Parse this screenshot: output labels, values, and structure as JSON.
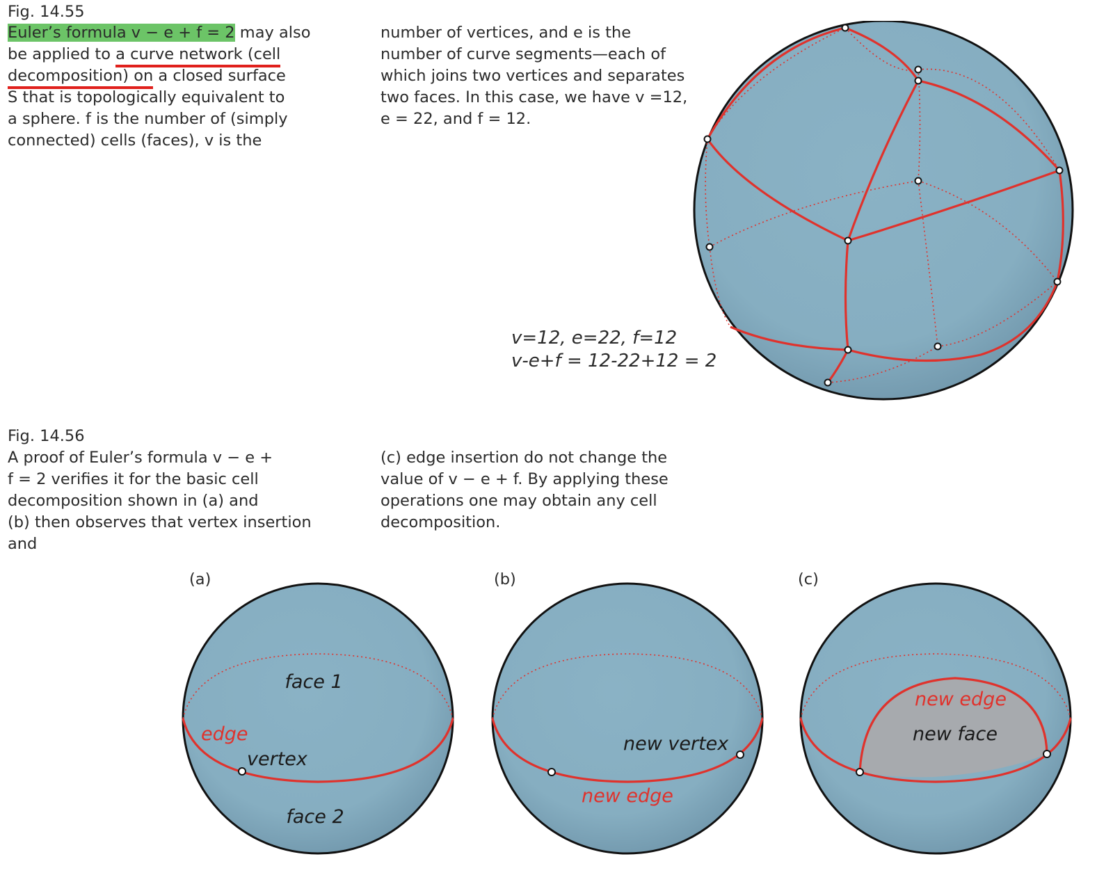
{
  "fig55": {
    "label": "Fig. 14.55",
    "col1": {
      "l1_hl": "Euler’s formula v − e + f = 2",
      "l1_rest": " may also",
      "l2_a": "be applied to ",
      "l2_u": "a curve network (cell",
      "l3_u": "decomposition) on",
      "l3_rest": " a closed surface",
      "l4": "S that is topologically equivalent to",
      "l5": "a sphere. f is the number of (simply",
      "l6": "connected) cells (faces), v is the"
    },
    "col2": {
      "l1": "number of vertices, and e is the",
      "l2": "number of curve segments—each of",
      "l3": "which joins two vertices and separates",
      "l4": "two faces. In this case, we have v =12,",
      "l5": "e = 22, and f = 12."
    },
    "formula_line1": "v=12, e=22, f=12",
    "formula_line2": "v-e+f = 12-22+12 = 2"
  },
  "fig56": {
    "label": "Fig. 14.56",
    "col1": {
      "l1": "A proof of Euler’s formula v − e +",
      "l2": "f = 2 verifies it for the basic cell",
      "l3": "decomposition shown in (a) and",
      "l4": "(b) then observes that vertex insertion",
      "l5": "and"
    },
    "col2": {
      "l1": "(c) edge insertion do not change the",
      "l2": "value of v − e + f. By applying these",
      "l3": "operations one may obtain any cell",
      "l4": "decomposition."
    },
    "panel_a": {
      "label": "(a)",
      "face1": "face 1",
      "face2": "face 2",
      "edge": "edge",
      "vertex": "vertex"
    },
    "panel_b": {
      "label": "(b)",
      "new_vertex": "new vertex",
      "new_edge": "new edge"
    },
    "panel_c": {
      "label": "(c)",
      "new_edge": "new edge",
      "new_face": "new face"
    }
  },
  "colors": {
    "sphere": "#86aec1",
    "curve": "#e0322c",
    "highlight": "#6cc467",
    "new_face": "#a7aaae"
  }
}
